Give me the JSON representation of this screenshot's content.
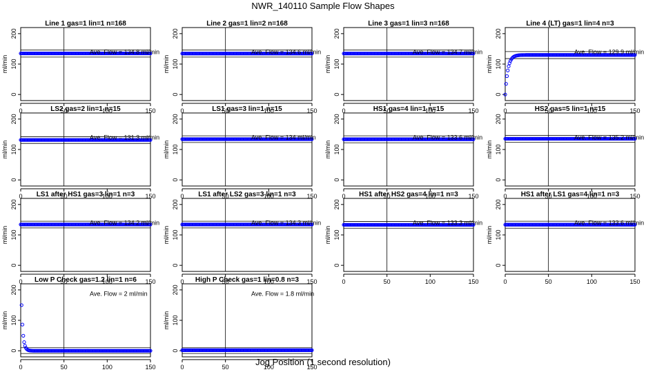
{
  "title": "NWR_140110  Sample Flow Shapes",
  "x_caption": "Jog Position (1 second resolution)",
  "chart_data": [
    {
      "type": "scatter",
      "title": "Line 1 gas=1 lin=1 n=168",
      "ylabel": "ml/min",
      "xlim": [
        0,
        150
      ],
      "ylim": [
        -20,
        220
      ],
      "xticks": [
        0,
        50,
        100,
        150
      ],
      "yticks": [
        0,
        100,
        200
      ],
      "vline": 50,
      "hlines": [
        123,
        146
      ],
      "annotation": "Ave. Flow =  134.8  ml/min",
      "shape": "flat",
      "level": 135
    },
    {
      "type": "scatter",
      "title": "Line 2 gas=1 lin=2 n=168",
      "ylabel": "ml/min",
      "xlim": [
        0,
        150
      ],
      "ylim": [
        -20,
        220
      ],
      "xticks": [
        0,
        50,
        100,
        150
      ],
      "yticks": [
        0,
        100,
        200
      ],
      "vline": 50,
      "hlines": [
        123,
        146
      ],
      "annotation": "Ave. Flow =  134.6  ml/min",
      "shape": "flat",
      "level": 134.6
    },
    {
      "type": "scatter",
      "title": "Line 3 gas=1 lin=3 n=168",
      "ylabel": "ml/min",
      "xlim": [
        0,
        150
      ],
      "ylim": [
        -20,
        220
      ],
      "xticks": [
        0,
        50,
        100,
        150
      ],
      "yticks": [
        0,
        100,
        200
      ],
      "vline": 50,
      "hlines": [
        123,
        146
      ],
      "annotation": "Ave. Flow =  134.7  ml/min",
      "shape": "flat",
      "level": 134.7
    },
    {
      "type": "scatter",
      "title": "Line 4 (LT) gas=1 lin=4 n=3",
      "ylabel": "ml/min",
      "xlim": [
        0,
        150
      ],
      "ylim": [
        -20,
        220
      ],
      "xticks": [
        0,
        50,
        100,
        150
      ],
      "yticks": [
        0,
        100,
        200
      ],
      "vline": 50,
      "hlines": [
        118,
        141
      ],
      "annotation": "Ave. Flow =  129.9  ml/min",
      "shape": "rise",
      "level": 130
    },
    {
      "type": "scatter",
      "title": "LS2 gas=2 lin=1 n=15",
      "ylabel": "ml/min",
      "xlim": [
        0,
        150
      ],
      "ylim": [
        -20,
        220
      ],
      "xticks": [
        0,
        50,
        100,
        150
      ],
      "yticks": [
        0,
        100,
        200
      ],
      "vline": 50,
      "hlines": [
        120,
        142
      ],
      "annotation": "Ave. Flow =  131.3  ml/min",
      "shape": "flat",
      "level": 131.3
    },
    {
      "type": "scatter",
      "title": "LS1 gas=3 lin=1 n=15",
      "ylabel": "ml/min",
      "xlim": [
        0,
        150
      ],
      "ylim": [
        -20,
        220
      ],
      "xticks": [
        0,
        50,
        100,
        150
      ],
      "yticks": [
        0,
        100,
        200
      ],
      "vline": 50,
      "hlines": [
        123,
        145
      ],
      "annotation": "Ave. Flow =  134   ml/min",
      "shape": "flat",
      "level": 134
    },
    {
      "type": "scatter",
      "title": "HS1 gas=4 lin=1 n=15",
      "ylabel": "ml/min",
      "xlim": [
        0,
        150
      ],
      "ylim": [
        -20,
        220
      ],
      "xticks": [
        0,
        50,
        100,
        150
      ],
      "yticks": [
        0,
        100,
        200
      ],
      "vline": 50,
      "hlines": [
        122,
        145
      ],
      "annotation": "Ave. Flow =  133.6  ml/min",
      "shape": "flat",
      "level": 133.6
    },
    {
      "type": "scatter",
      "title": "HS2 gas=5 lin=1 n=15",
      "ylabel": "ml/min",
      "xlim": [
        0,
        150
      ],
      "ylim": [
        -20,
        220
      ],
      "xticks": [
        0,
        50,
        100,
        150
      ],
      "yticks": [
        0,
        100,
        200
      ],
      "vline": 50,
      "hlines": [
        124,
        146
      ],
      "annotation": "Ave. Flow =  135.2  ml/min",
      "shape": "flat",
      "level": 135.2
    },
    {
      "type": "scatter",
      "title": "LS1 after HS1 gas=3 lin=1 n=3",
      "ylabel": "ml/min",
      "xlim": [
        0,
        150
      ],
      "ylim": [
        -20,
        220
      ],
      "xticks": [
        0,
        50,
        100,
        150
      ],
      "yticks": [
        0,
        100,
        200
      ],
      "vline": 50,
      "hlines": [
        123,
        145
      ],
      "annotation": "Ave. Flow =  134.2  ml/min",
      "shape": "flat",
      "level": 134.2
    },
    {
      "type": "scatter",
      "title": "LS1 after LS2 gas=3 lin=1 n=3",
      "ylabel": "ml/min",
      "xlim": [
        0,
        150
      ],
      "ylim": [
        -20,
        220
      ],
      "xticks": [
        0,
        50,
        100,
        150
      ],
      "yticks": [
        0,
        100,
        200
      ],
      "vline": 50,
      "hlines": [
        123,
        145
      ],
      "annotation": "Ave. Flow =  134.3  ml/min",
      "shape": "flat",
      "level": 134.3
    },
    {
      "type": "scatter",
      "title": "HS1 after HS2 gas=4 lin=1 n=3",
      "ylabel": "ml/min",
      "xlim": [
        0,
        150
      ],
      "ylim": [
        -20,
        220
      ],
      "xticks": [
        0,
        50,
        100,
        150
      ],
      "yticks": [
        0,
        100,
        200
      ],
      "vline": 50,
      "hlines": [
        122,
        144
      ],
      "annotation": "Ave. Flow =  133.3  ml/min",
      "shape": "flat",
      "level": 133.3
    },
    {
      "type": "scatter",
      "title": "HS1 after LS1 gas=4 lin=1 n=3",
      "ylabel": "ml/min",
      "xlim": [
        0,
        150
      ],
      "ylim": [
        -20,
        220
      ],
      "xticks": [
        0,
        50,
        100,
        150
      ],
      "yticks": [
        0,
        100,
        200
      ],
      "vline": 50,
      "hlines": [
        122,
        145
      ],
      "annotation": "Ave. Flow =  133.6  ml/min",
      "shape": "flat",
      "level": 133.6
    },
    {
      "type": "scatter",
      "title": "Low P Check gas=1.2 lin=1 n=6",
      "ylabel": "ml/min",
      "xlim": [
        0,
        150
      ],
      "ylim": [
        -20,
        220
      ],
      "xticks": [
        0,
        50,
        100,
        150
      ],
      "yticks": [
        0,
        100,
        200
      ],
      "vline": 50,
      "hlines": [
        -9,
        10
      ],
      "annotation": "Ave. Flow =  2  ml/min",
      "shape": "decay",
      "level": 2
    },
    {
      "type": "scatter",
      "title": "High P Check gas=1 lin=0.8 n=3",
      "ylabel": "ml/min",
      "xlim": [
        0,
        150
      ],
      "ylim": [
        -20,
        220
      ],
      "xticks": [
        0,
        50,
        100,
        150
      ],
      "yticks": [
        0,
        100,
        200
      ],
      "vline": 50,
      "hlines": [
        -9,
        10
      ],
      "annotation": "Ave. Flow =  1.8  ml/min",
      "shape": "flat",
      "level": 1.8
    }
  ]
}
